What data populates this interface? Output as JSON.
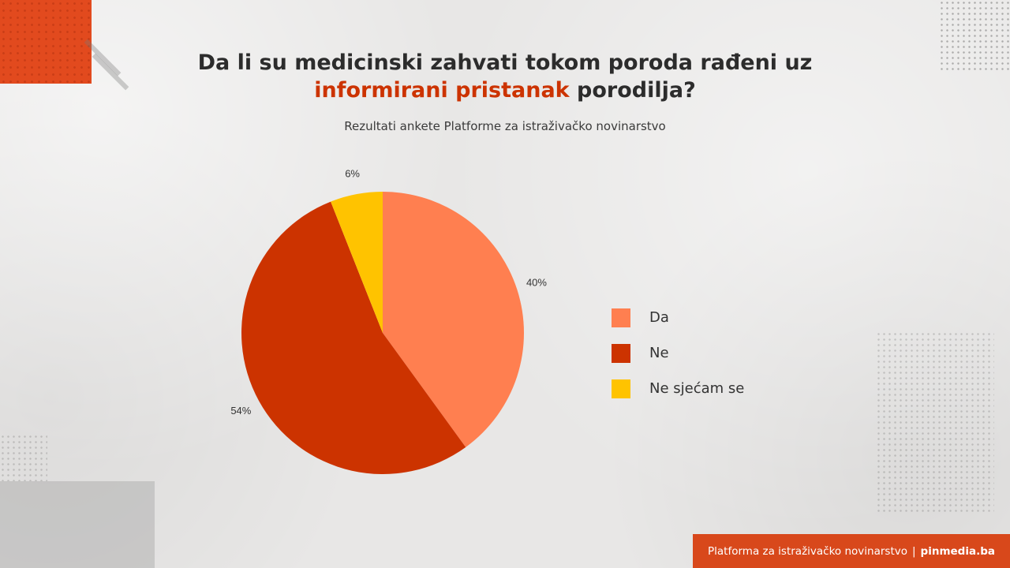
{
  "header": {
    "title_line1": "Da li su medicinski zahvati tokom poroda rađeni uz",
    "title_highlight": "informirani pristanak",
    "title_rest": " porodilja?",
    "subtitle": "Rezultati ankete Platforme za istraživačko novinarstvo"
  },
  "footer": {
    "org": "Platforma za istraživačko novinarstvo",
    "separator": "|",
    "site": "pinmedia.ba"
  },
  "colors": {
    "accent": "#e24a1e",
    "highlight_text": "#cc3300"
  },
  "chart_data": {
    "type": "pie",
    "title": "",
    "categories": [
      "Da",
      "Ne",
      "Ne sjećam se"
    ],
    "values": [
      40,
      54,
      6
    ],
    "labels": [
      "40%",
      "54%",
      "6%"
    ],
    "colors": [
      "#ff7f50",
      "#cc3300",
      "#ffc300"
    ],
    "start_angle": "12 o'clock, clockwise",
    "legend_position": "right"
  }
}
